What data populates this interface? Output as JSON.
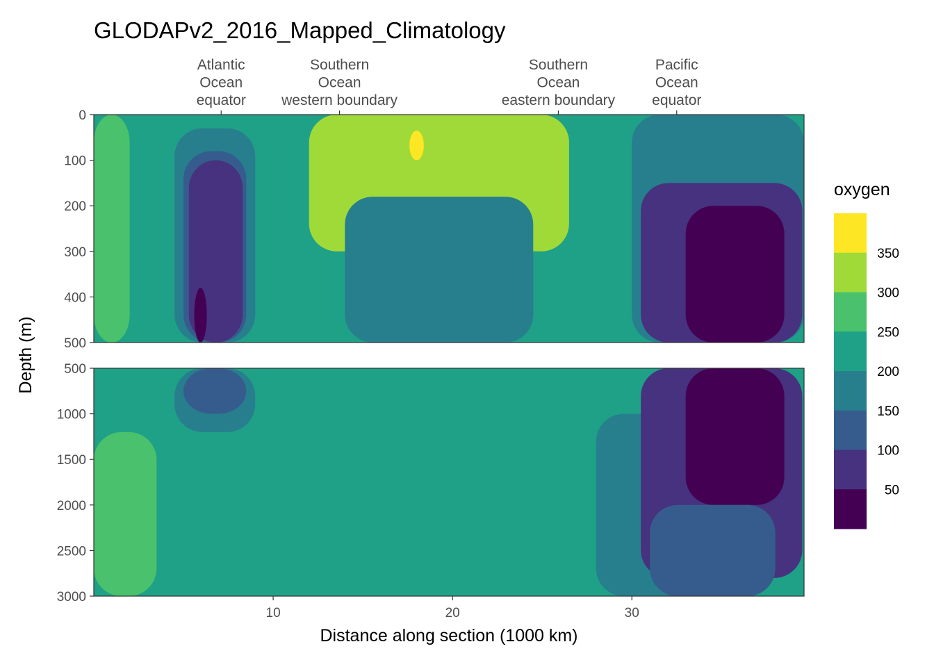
{
  "chart_data": {
    "type": "heatmap",
    "title": "GLODAPv2_2016_Mapped_Climatology",
    "xlabel": "Distance along section (1000 km)",
    "ylabel": "Depth (m)",
    "xlim": [
      0,
      39.6
    ],
    "x_ticks": [
      10,
      20,
      30
    ],
    "panels": [
      {
        "name": "upper",
        "depth_range": [
          0,
          500
        ],
        "y_ticks": [
          0,
          100,
          200,
          300,
          400,
          500
        ]
      },
      {
        "name": "lower",
        "depth_range": [
          500,
          3000
        ],
        "y_ticks": [
          500,
          1000,
          1500,
          2000,
          2500,
          3000
        ]
      }
    ],
    "section_labels": [
      {
        "x": 7.1,
        "lines": [
          "Atlantic",
          "Ocean",
          "equator"
        ]
      },
      {
        "x": 13.7,
        "lines": [
          "Southern",
          "Ocean",
          "western boundary"
        ]
      },
      {
        "x": 25.9,
        "lines": [
          "Southern",
          "Ocean",
          "eastern boundary"
        ]
      },
      {
        "x": 32.5,
        "lines": [
          "Pacific",
          "Ocean",
          "equator"
        ]
      }
    ],
    "legend": {
      "title": "oxygen",
      "breaks": [
        50,
        100,
        150,
        200,
        250,
        300,
        350
      ],
      "bins": [
        {
          "range": [
            0,
            50
          ],
          "color": "#440154"
        },
        {
          "range": [
            50,
            100
          ],
          "color": "#46327e"
        },
        {
          "range": [
            100,
            150
          ],
          "color": "#365c8d"
        },
        {
          "range": [
            150,
            200
          ],
          "color": "#277f8e"
        },
        {
          "range": [
            200,
            250
          ],
          "color": "#1fa187"
        },
        {
          "range": [
            250,
            300
          ],
          "color": "#4ac16d"
        },
        {
          "range": [
            300,
            350
          ],
          "color": "#a0da39"
        },
        {
          "range": [
            350,
            400
          ],
          "color": "#fde725"
        }
      ]
    },
    "field_features": [
      {
        "name": "background",
        "bin": 4,
        "x_range": [
          0,
          39.6
        ],
        "depth_range": [
          0,
          3000
        ]
      },
      {
        "name": "atlantic-surface",
        "bin": 5,
        "x_range": [
          0,
          2
        ],
        "depth_range": [
          0,
          500
        ]
      },
      {
        "name": "atlantic-deep",
        "bin": 5,
        "x_range": [
          0,
          3.5
        ],
        "depth_range": [
          1200,
          3000
        ]
      },
      {
        "name": "atlantic-omz",
        "bin": 3,
        "x_range": [
          4.5,
          9
        ],
        "depth_range": [
          30,
          1200
        ]
      },
      {
        "name": "atlantic-omz-core",
        "bin": 2,
        "x_range": [
          5,
          8.5
        ],
        "depth_range": [
          80,
          1000
        ]
      },
      {
        "name": "atlantic-omz-center",
        "bin": 1,
        "x_range": [
          5.3,
          8.3
        ],
        "depth_range": [
          100,
          500
        ]
      },
      {
        "name": "atlantic-min",
        "bin": 0,
        "x_range": [
          5.6,
          6.3
        ],
        "depth_range": [
          380,
          500
        ]
      },
      {
        "name": "southern-surface",
        "bin": 6,
        "x_range": [
          12,
          26.5
        ],
        "depth_range": [
          0,
          300
        ]
      },
      {
        "name": "southern-max",
        "bin": 7,
        "x_range": [
          17.6,
          18.4
        ],
        "depth_range": [
          35,
          100
        ]
      },
      {
        "name": "southern-intermediate",
        "bin": 3,
        "x_range": [
          14,
          24.5
        ],
        "depth_range": [
          180,
          500
        ]
      },
      {
        "name": "southern-deep",
        "bin": 3,
        "x_range": [
          28,
          35
        ],
        "depth_range": [
          1000,
          3000
        ]
      },
      {
        "name": "pacific-upper",
        "bin": 3,
        "x_range": [
          30,
          39.6
        ],
        "depth_range": [
          0,
          500
        ]
      },
      {
        "name": "pacific-omz",
        "bin": 1,
        "x_range": [
          30.5,
          39.5
        ],
        "depth_range": [
          150,
          2800
        ]
      },
      {
        "name": "pacific-min",
        "bin": 0,
        "x_range": [
          33,
          38.5
        ],
        "depth_range": [
          200,
          2000
        ]
      },
      {
        "name": "pacific-deep",
        "bin": 2,
        "x_range": [
          31,
          38
        ],
        "depth_range": [
          2000,
          3000
        ]
      }
    ]
  }
}
